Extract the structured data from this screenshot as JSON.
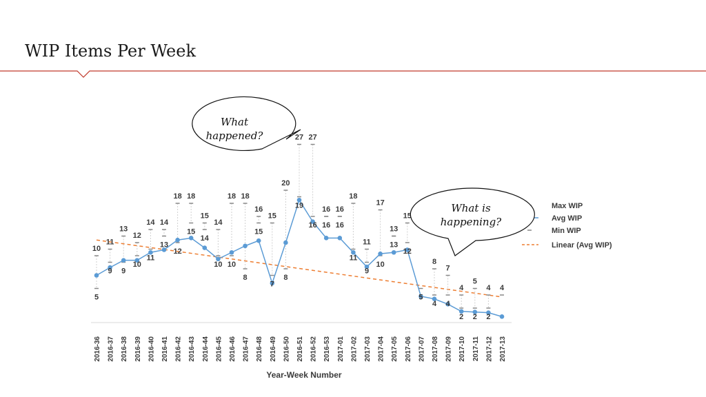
{
  "slide": {
    "title": "WIP Items Per Week"
  },
  "callouts": [
    {
      "lines": [
        "What",
        "happened?"
      ]
    },
    {
      "lines": [
        "What is",
        "happening?"
      ]
    }
  ],
  "legend": {
    "max_label": "Max WIP",
    "avg_label": "Avg WIP",
    "min_label": "Min WIP",
    "trend_label": "Linear (Avg WIP)"
  },
  "colors": {
    "avg": "#5b9bd5",
    "trend": "#ed7d31",
    "accent": "#c0392b",
    "marker": "#888888"
  },
  "chart_data": {
    "type": "line",
    "xlabel": "Year-Week Number",
    "ylabel": "",
    "ylim": [
      0,
      28
    ],
    "categories": [
      "2016-36",
      "2016-37",
      "2016-38",
      "2016-39",
      "2016-40",
      "2016-41",
      "2016-42",
      "2016-43",
      "2016-44",
      "2016-45",
      "2016-46",
      "2016-47",
      "2016-48",
      "2016-49",
      "2016-50",
      "2016-51",
      "2016-52",
      "2016-53",
      "2017-01",
      "2017-02",
      "2017-03",
      "2017-04",
      "2017-05",
      "2017-06",
      "2017-07",
      "2017-08",
      "2017-09",
      "2017-10",
      "2017-11",
      "2017-12",
      "2017-13"
    ],
    "series": [
      {
        "name": "Max WIP",
        "values": [
          10,
          11,
          13,
          12,
          14,
          14,
          18,
          18,
          15,
          14,
          18,
          18,
          16,
          15,
          20,
          27,
          27,
          16,
          16,
          18,
          11,
          17,
          13,
          15,
          null,
          8,
          7,
          4,
          5,
          4,
          4
        ]
      },
      {
        "name": "Avg WIP",
        "values": [
          7,
          8.2,
          9.3,
          9.3,
          10.5,
          10.9,
          12.4,
          12.7,
          11.2,
          9.5,
          10.5,
          11.5,
          12.3,
          5.8,
          12,
          18.5,
          15.2,
          12.7,
          12.7,
          10.5,
          8.3,
          10.3,
          10.5,
          10.9,
          3.8,
          3.4,
          2.6,
          1.5,
          1.4,
          1.3,
          0.7
        ]
      },
      {
        "name": "Min WIP",
        "values": [
          5,
          9,
          9,
          10,
          11,
          13,
          12,
          15,
          14,
          10,
          10,
          8,
          15,
          7,
          8,
          19,
          16,
          16,
          16,
          11,
          9,
          10,
          13,
          12,
          5,
          4,
          4,
          2,
          2,
          2,
          null
        ]
      }
    ],
    "trend": {
      "name": "Linear (Avg WIP)",
      "start": 12.4,
      "end": 3.7
    }
  }
}
